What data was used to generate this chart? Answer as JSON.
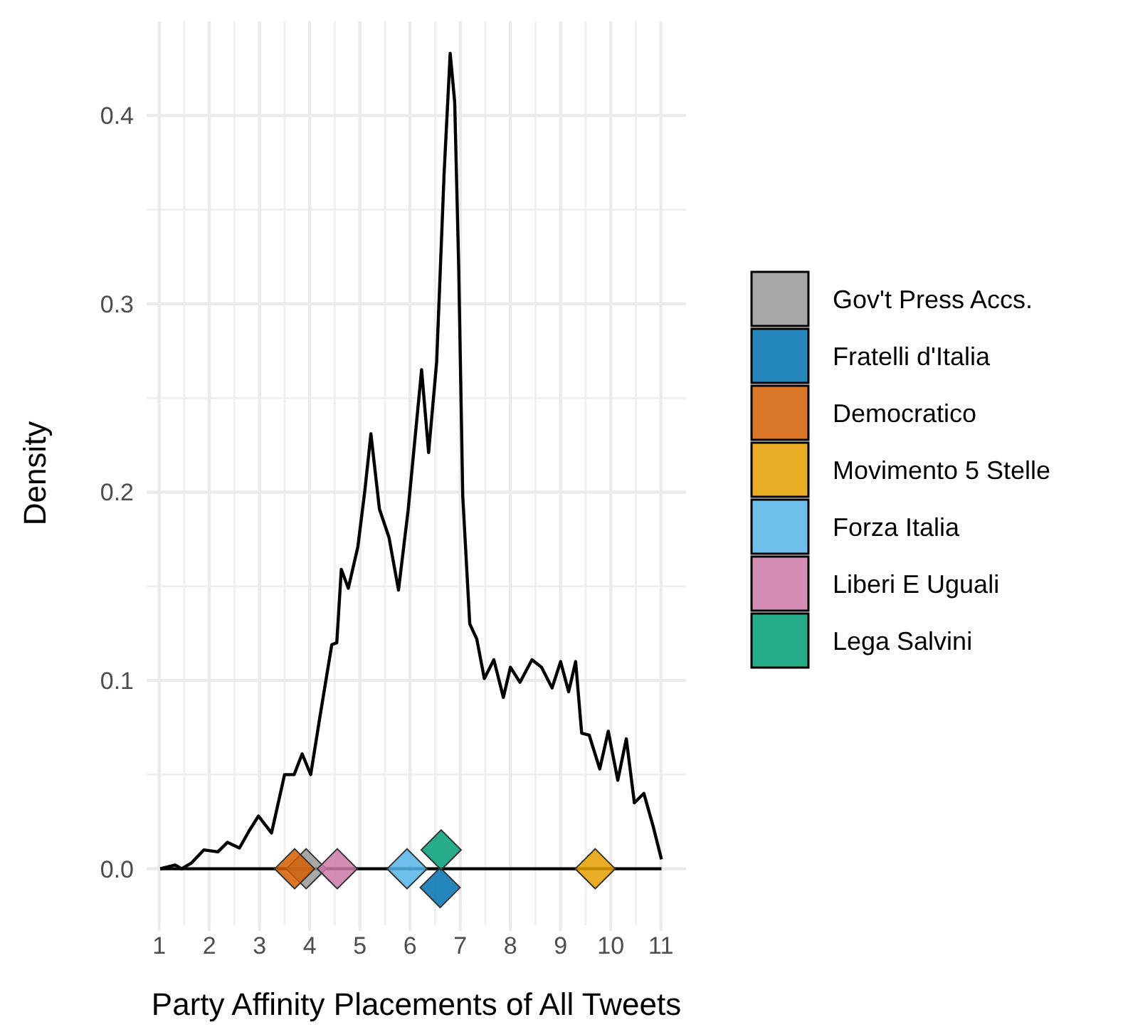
{
  "chart_data": {
    "type": "line",
    "xlabel": "Party Affinity Placements of All Tweets",
    "ylabel": "Density",
    "xlim": [
      0.75,
      11.5
    ],
    "ylim": [
      -0.03,
      0.45
    ],
    "xticks": [
      1,
      2,
      3,
      4,
      5,
      6,
      7,
      8,
      9,
      10,
      11
    ],
    "yticks": [
      {
        "value": 0,
        "label": "0.0"
      },
      {
        "value": 0.1,
        "label": "0.1"
      },
      {
        "value": 0.2,
        "label": "0.2"
      },
      {
        "value": 0.3,
        "label": "0.3"
      },
      {
        "value": 0.4,
        "label": "0.4"
      }
    ],
    "grid": true,
    "legend": "right",
    "line_style": "solid",
    "ref_lines": [
      {
        "axis": "y",
        "value": 0,
        "color": "#000000"
      }
    ],
    "series": [
      {
        "color": "#000000",
        "marker": "none",
        "x": [
          1.02,
          1.32,
          1.45,
          1.64,
          1.89,
          2.17,
          2.36,
          2.6,
          2.79,
          2.98,
          3.24,
          3.5,
          3.69,
          3.85,
          4.02,
          4.2,
          4.44,
          4.54,
          4.63,
          4.77,
          4.96,
          5.1,
          5.22,
          5.39,
          5.58,
          5.77,
          5.96,
          6.23,
          6.37,
          6.53,
          6.68,
          6.8,
          6.89,
          6.97,
          7.05,
          7.19,
          7.33,
          7.48,
          7.67,
          7.86,
          8.0,
          8.19,
          8.43,
          8.62,
          8.83,
          9.0,
          9.16,
          9.3,
          9.42,
          9.57,
          9.78,
          9.95,
          10.14,
          10.31,
          10.47,
          10.66,
          10.85,
          11.01
        ],
        "values": [
          0,
          0.002,
          0,
          0.003,
          0.01,
          0.009,
          0.014,
          0.011,
          0.02,
          0.028,
          0.019,
          0.05,
          0.05,
          0.061,
          0.05,
          0.08,
          0.119,
          0.12,
          0.159,
          0.149,
          0.171,
          0.201,
          0.231,
          0.191,
          0.176,
          0.148,
          0.19,
          0.265,
          0.221,
          0.269,
          0.37,
          0.433,
          0.407,
          0.319,
          0.198,
          0.13,
          0.122,
          0.101,
          0.111,
          0.091,
          0.107,
          0.099,
          0.111,
          0.107,
          0.096,
          0.11,
          0.094,
          0.11,
          0.072,
          0.071,
          0.053,
          0.073,
          0.047,
          0.069,
          0.035,
          0.04,
          0.022,
          0.005
        ]
      },
      {
        "type": "scatter",
        "name": "Gov't Press Accs.",
        "color": "#999999",
        "marker": "diamond",
        "x": [
          3.93
        ],
        "values": [
          0
        ]
      },
      {
        "type": "scatter",
        "name": "Fratelli d'Italia",
        "color": "#0072b2",
        "marker": "diamond",
        "x": [
          6.6
        ],
        "values": [
          -0.01
        ]
      },
      {
        "type": "scatter",
        "name": "Democratico",
        "color": "#d55e00",
        "marker": "diamond",
        "x": [
          3.7
        ],
        "values": [
          0
        ]
      },
      {
        "type": "scatter",
        "name": "Movimento 5 Stelle",
        "color": "#e69f00",
        "marker": "diamond",
        "x": [
          9.69
        ],
        "values": [
          0
        ]
      },
      {
        "type": "scatter",
        "name": "Forza Italia",
        "color": "#56b4e9",
        "marker": "diamond",
        "x": [
          5.94
        ],
        "values": [
          0
        ]
      },
      {
        "type": "scatter",
        "name": "Liberi E Uguali",
        "color": "#cc79a7",
        "marker": "diamond",
        "x": [
          4.55
        ],
        "values": [
          0
        ]
      },
      {
        "type": "scatter",
        "name": "Lega Salvini",
        "color": "#009e73",
        "marker": "diamond",
        "x": [
          6.62
        ],
        "values": [
          0.01
        ]
      }
    ]
  }
}
